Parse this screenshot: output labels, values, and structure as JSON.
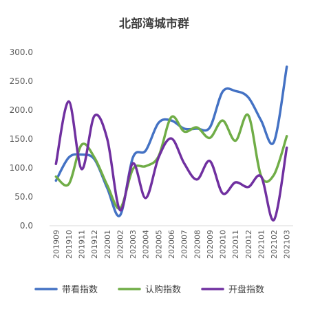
{
  "chart_data": {
    "type": "line",
    "title": "北部湾城市群",
    "xlabel": "",
    "ylabel": "",
    "ylim": [
      0,
      300
    ],
    "yticks": [
      "0.0",
      "50.0",
      "100.0",
      "150.0",
      "200.0",
      "250.0",
      "300.0"
    ],
    "categories": [
      "201909",
      "201910",
      "201911",
      "201912",
      "202001",
      "202002",
      "202003",
      "202004",
      "202005",
      "202006",
      "202007",
      "202008",
      "202009",
      "202010",
      "202011",
      "202012",
      "202101",
      "202102",
      "202103"
    ],
    "grid": false,
    "legend_position": "bottom",
    "series": [
      {
        "name": "带看指数",
        "color": "#4472C4",
        "values": [
          78,
          118,
          123,
          115,
          65,
          18,
          118,
          130,
          178,
          182,
          168,
          168,
          170,
          232,
          233,
          222,
          182,
          145,
          275
        ]
      },
      {
        "name": "认购指数",
        "color": "#70AD47",
        "values": [
          85,
          72,
          140,
          118,
          70,
          30,
          98,
          103,
          120,
          188,
          163,
          170,
          152,
          182,
          147,
          191,
          86,
          88,
          155
        ]
      },
      {
        "name": "开盘指数",
        "color": "#7030A0",
        "values": [
          107,
          215,
          98,
          190,
          150,
          27,
          108,
          48,
          118,
          151,
          108,
          80,
          112,
          56,
          75,
          67,
          85,
          10,
          135
        ]
      }
    ]
  }
}
